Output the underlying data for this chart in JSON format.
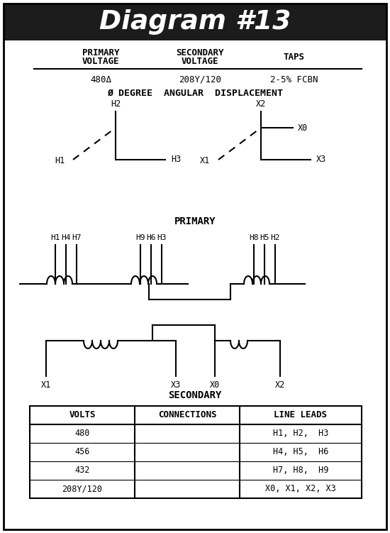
{
  "title": "Diagram #13",
  "title_bg": "#1c1c1c",
  "title_color": "#ffffff",
  "bg_color": "#ffffff",
  "border_color": "#000000",
  "primary_voltage": "480Δ",
  "secondary_voltage": "208Y/120",
  "taps": "2-5% FCBN",
  "angular_displacement": "Ø DEGREE  ANGULAR  DISPLACEMENT",
  "primary_label": "PRIMARY",
  "secondary_label": "SECONDARY",
  "table_headers": [
    "VOLTS",
    "CONNECTIONS",
    "LINE LEADS"
  ],
  "volts": [
    "480",
    "456",
    "432",
    "208Y/120"
  ],
  "line_leads": [
    "H1, H2,  H3",
    "H4, H5,  H6",
    "H7, H8,  H9",
    "X0, X1, X2, X3"
  ],
  "h_group1": [
    "H1",
    "H4",
    "H7"
  ],
  "h_group2": [
    "H9",
    "H6",
    "H3"
  ],
  "h_group3": [
    "H8",
    "H5",
    "H2"
  ],
  "x_bottom_labels": [
    "X1",
    "X3",
    "X0",
    "X2"
  ]
}
